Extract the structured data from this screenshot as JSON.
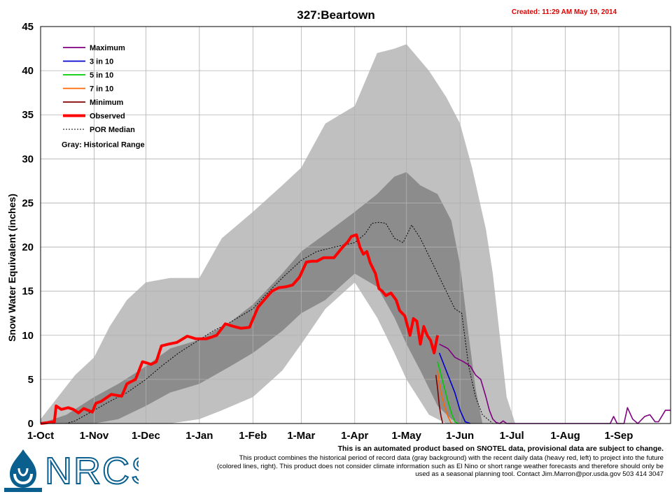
{
  "chart_data": {
    "type": "line",
    "title": "327:Beartown",
    "created": "Created: 11:29 AM May 19, 2014",
    "ylabel": "Snow Water Equivalent (inches)",
    "ylim": [
      0,
      45
    ],
    "yticks": [
      0,
      5,
      10,
      15,
      20,
      25,
      30,
      35,
      40,
      45
    ],
    "x_tick_labels": [
      "1-Oct",
      "1-Nov",
      "1-Dec",
      "1-Jan",
      "1-Feb",
      "1-Mar",
      "1-Apr",
      "1-May",
      "1-Jun",
      "1-Jul",
      "1-Aug",
      "1-Sep"
    ],
    "x_tick_days": [
      0,
      31,
      61,
      92,
      123,
      151,
      182,
      212,
      243,
      273,
      304,
      335
    ],
    "xlim_days": [
      0,
      365
    ],
    "x_unit": "days since 1-Oct",
    "grid": true,
    "legend_position": "top-left",
    "legend": [
      {
        "label": "Maximum",
        "color": "#800080",
        "style": "solid"
      },
      {
        "label": "3 in 10",
        "color": "#0000cc",
        "style": "solid"
      },
      {
        "label": "5 in 10",
        "color": "#00cc00",
        "style": "solid"
      },
      {
        "label": "7 in 10",
        "color": "#ff6600",
        "style": "solid"
      },
      {
        "label": "Minimum",
        "color": "#800000",
        "style": "solid"
      },
      {
        "label": "Observed",
        "color": "#ff0000",
        "style": "thick"
      },
      {
        "label": "POR Median",
        "color": "#000000",
        "style": "dotted"
      }
    ],
    "legend_note": "Gray: Historical Range",
    "range_colors": {
      "outer": "#c0c0c0",
      "inner": "#8c8c8c"
    },
    "historical_range_outer": {
      "x": [
        0,
        10,
        20,
        31,
        40,
        50,
        61,
        75,
        92,
        105,
        123,
        140,
        151,
        165,
        182,
        195,
        205,
        212,
        225,
        235,
        243,
        250,
        258,
        262,
        266,
        270,
        275
      ],
      "upper": [
        0.5,
        3.0,
        5.5,
        7.5,
        11.0,
        14.0,
        16.0,
        16.5,
        16.5,
        21.0,
        24.0,
        27.0,
        29.0,
        34.0,
        36.0,
        42.0,
        42.5,
        43.0,
        40.0,
        37.0,
        34.0,
        29.0,
        22.0,
        17.0,
        10.0,
        3.0,
        0.0
      ],
      "lower": [
        0.0,
        0.0,
        0.0,
        0.0,
        0.0,
        0.0,
        0.0,
        0.0,
        0.5,
        1.5,
        3.0,
        6.0,
        9.0,
        13.0,
        16.0,
        12.0,
        8.0,
        5.0,
        1.0,
        0.0,
        0.0,
        0.0,
        0.0,
        0.0,
        0.0,
        0.0,
        0.0
      ]
    },
    "historical_range_inner": {
      "x": [
        0,
        15,
        31,
        45,
        61,
        75,
        92,
        110,
        123,
        140,
        151,
        165,
        182,
        195,
        205,
        212,
        220,
        230,
        238,
        243,
        248,
        252,
        256
      ],
      "upper": [
        0.0,
        1.0,
        3.0,
        4.5,
        6.5,
        8.5,
        9.5,
        11.5,
        13.5,
        17.0,
        19.5,
        21.5,
        24.0,
        26.0,
        28.0,
        28.5,
        27.0,
        26.0,
        23.0,
        18.0,
        10.0,
        4.0,
        0.0
      ],
      "lower": [
        0.0,
        0.0,
        0.0,
        0.5,
        2.0,
        3.5,
        4.5,
        6.5,
        8.0,
        10.5,
        12.5,
        14.0,
        17.0,
        15.5,
        12.0,
        9.0,
        6.0,
        2.0,
        0.5,
        0.0,
        0.0,
        0.0,
        0.0
      ]
    },
    "series": [
      {
        "name": "Observed",
        "color": "#ff0000",
        "x": [
          0,
          8,
          9,
          12,
          16,
          19,
          22,
          25,
          30,
          32,
          35,
          38,
          41,
          44,
          47,
          50,
          55,
          59,
          61,
          64,
          67,
          70,
          74,
          79,
          85,
          90,
          96,
          102,
          107,
          112,
          116,
          121,
          126,
          130,
          134,
          138,
          142,
          146,
          150,
          154,
          157,
          160,
          164,
          167,
          170,
          175,
          178,
          180,
          183,
          185,
          187,
          189,
          191,
          194,
          196,
          198,
          200,
          203,
          206,
          208,
          211,
          214,
          216,
          218,
          220,
          222,
          224,
          226,
          228,
          230
        ],
        "y": [
          0,
          0.2,
          2.0,
          1.6,
          1.8,
          1.6,
          1.2,
          1.7,
          1.3,
          2.3,
          2.5,
          2.9,
          3.3,
          3.2,
          3.1,
          4.5,
          5.0,
          7.0,
          6.9,
          6.7,
          7.0,
          8.8,
          9.0,
          9.2,
          9.9,
          9.6,
          9.6,
          10.0,
          11.3,
          11.0,
          10.8,
          10.9,
          13.2,
          14.1,
          15.0,
          15.4,
          15.5,
          15.7,
          16.6,
          18.3,
          18.4,
          18.4,
          18.8,
          18.8,
          18.8,
          20.0,
          20.6,
          21.2,
          21.4,
          20.0,
          19.2,
          19.5,
          18.2,
          17.0,
          15.3,
          15.0,
          14.5,
          14.8,
          14.0,
          12.8,
          12.2,
          10.0,
          11.9,
          11.6,
          9.0,
          11.0,
          10.0,
          9.4,
          8.0,
          10.0
        ]
      },
      {
        "name": "POR Median",
        "color": "#000000",
        "x": [
          0,
          15,
          20,
          31,
          40,
          50,
          61,
          70,
          80,
          92,
          100,
          110,
          123,
          130,
          140,
          151,
          160,
          170,
          182,
          188,
          192,
          196,
          200,
          205,
          210,
          215,
          220,
          225,
          230,
          235,
          240,
          244,
          248,
          252,
          256,
          262
        ],
        "y": [
          0,
          0,
          0.3,
          1.5,
          2.5,
          3.5,
          5.0,
          6.5,
          8.0,
          9.5,
          10.5,
          11.5,
          13.0,
          14.5,
          16.5,
          18.5,
          19.5,
          20.0,
          20.5,
          21.5,
          22.7,
          22.8,
          22.7,
          21.0,
          20.5,
          22.5,
          21.0,
          19.0,
          17.0,
          15.0,
          13.0,
          12.5,
          6.5,
          3.0,
          1.0,
          0.0
        ]
      },
      {
        "name": "Maximum",
        "color": "#800080",
        "x": [
          231,
          236,
          240,
          245,
          249,
          252,
          255,
          258,
          260,
          262,
          264,
          266,
          268,
          270,
          330,
          332,
          334,
          338,
          340,
          343,
          346,
          350,
          353,
          356,
          358,
          362,
          365
        ],
        "y": [
          9.0,
          8.5,
          7.5,
          7.0,
          6.5,
          5.5,
          5.0,
          3.0,
          1.5,
          0.5,
          0.1,
          0.0,
          0.3,
          0.0,
          0.0,
          0.8,
          0.0,
          0.0,
          1.8,
          0.5,
          0.0,
          0.8,
          1.0,
          0.2,
          0.2,
          1.5,
          1.5
        ]
      },
      {
        "name": "3 in 10",
        "color": "#0000cc",
        "x": [
          231,
          234,
          237,
          240,
          243,
          246,
          249
        ],
        "y": [
          8.0,
          6.5,
          5.0,
          3.5,
          1.5,
          0.2,
          0.0
        ]
      },
      {
        "name": "5 in 10",
        "color": "#00cc00",
        "x": [
          230,
          232,
          234,
          236,
          238,
          240,
          242
        ],
        "y": [
          7.0,
          5.5,
          4.0,
          2.5,
          1.2,
          0.2,
          0.0
        ]
      },
      {
        "name": "7 in 10",
        "color": "#ff6600",
        "x": [
          230,
          231,
          232,
          234,
          236,
          238
        ],
        "y": [
          6.0,
          4.5,
          3.5,
          2.0,
          0.8,
          0.0
        ]
      },
      {
        "name": "Minimum",
        "color": "#800000",
        "x": [
          229,
          230,
          231,
          232,
          233
        ],
        "y": [
          5.5,
          4.0,
          2.0,
          0.8,
          0.0
        ]
      }
    ]
  },
  "disclaimer": {
    "bold_line": "This is an automated product based on SNOTEL data, provisional data are subject to change.",
    "text": "This product combines the historical period of record data (gray background) with the recent daily data (heavy red, left) to project into the future (colored lines, right). This product does not consider climate information such as El Nino or short range weather forecasts and therefore should only be used as a seasonal planning tool. Contact Jim.Marron@por.usda.gov 503 414 3047"
  },
  "logo": {
    "text": "NRCS",
    "color": "#0a5f8f"
  }
}
